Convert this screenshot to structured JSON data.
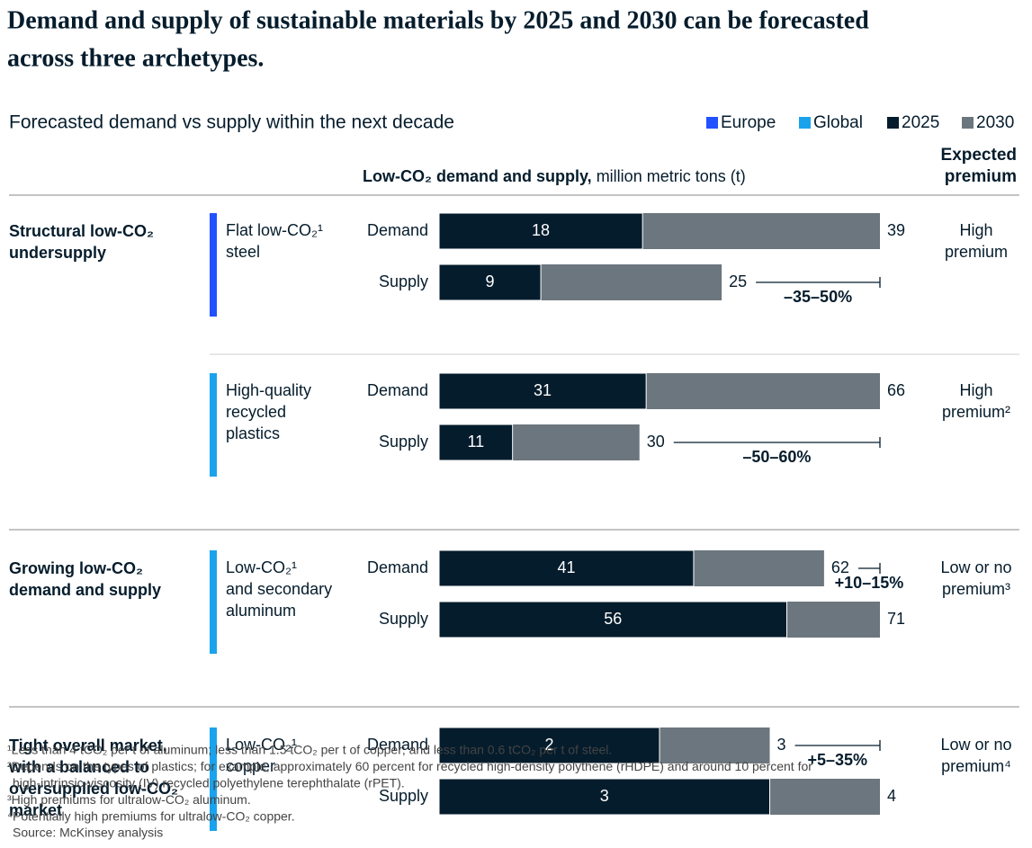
{
  "chart_data": {
    "type": "bar",
    "title": [
      "Demand and supply of sustainable materials by 2025 and 2030 can be forecasted",
      "across three archetypes."
    ],
    "subtitle": "Forecasted demand vs supply within the next decade",
    "legend": [
      {
        "name": "Europe",
        "color": "#2251ff"
      },
      {
        "name": "Global",
        "color": "#1aa3ec"
      },
      {
        "name": "2025",
        "color": "#051c2c"
      },
      {
        "name": "2030",
        "color": "#6c767e"
      }
    ],
    "value_header": {
      "bold": "Low-CO₂ demand and supply,",
      "unit": "million metric tons (t)"
    },
    "premium_header": [
      "Expected",
      "premium"
    ],
    "archetypes": [
      {
        "name": [
          "Structural low-CO₂",
          "undersupply"
        ],
        "materials": [
          {
            "name": [
              "Flat low-CO₂¹",
              "steel"
            ],
            "region": "Europe",
            "premium": [
              "High",
              "premium"
            ],
            "rows": [
              {
                "label": "Demand",
                "v2025": 18,
                "v2030": 39
              },
              {
                "label": "Supply",
                "v2025": 9,
                "v2030": 25,
                "gap": "–35–50%"
              }
            ]
          },
          {
            "name": [
              "High-quality",
              "recycled",
              "plastics"
            ],
            "region": "Global",
            "premium": [
              "High",
              "premium²"
            ],
            "rows": [
              {
                "label": "Demand",
                "v2025": 31,
                "v2030": 66
              },
              {
                "label": "Supply",
                "v2025": 11,
                "v2030": 30,
                "gap": "–50–60%"
              }
            ]
          }
        ]
      },
      {
        "name": [
          "Growing low-CO₂",
          "demand and supply"
        ],
        "materials": [
          {
            "name": [
              "Low-CO₂¹",
              "and secondary",
              "aluminum"
            ],
            "region": "Global",
            "premium": [
              "Low or no",
              "premium³"
            ],
            "rows": [
              {
                "label": "Demand",
                "v2025": 41,
                "v2030": 62,
                "gap": "+10–15%"
              },
              {
                "label": "Supply",
                "v2025": 56,
                "v2030": 71
              }
            ]
          }
        ]
      },
      {
        "name": [
          "Tight overall market,",
          "with a balanced to",
          "oversupplied low-CO₂",
          "market"
        ],
        "materials": [
          {
            "name": [
              "Low-CO₂¹",
              "copper"
            ],
            "region": "Global",
            "premium": [
              "Low or no",
              "premium⁴"
            ],
            "rows": [
              {
                "label": "Demand",
                "v2025": 2,
                "v2030": 3,
                "gap": "+5–35%"
              },
              {
                "label": "Supply",
                "v2025": 3,
                "v2030": 4
              }
            ]
          }
        ]
      }
    ],
    "footnotes": [
      [
        "¹Less than 4 tCO₂ per t of aluminum; less than 1.5 tCO₂ per t of copper; and less than 0.6 tCO₂ per t of steel."
      ],
      [
        "²Depends on the types of plastics; for example, approximately 60 percent for recycled high-density polythene (rHDPE) and around 10 percent for",
        "high-intrinsic-viscosity (IV) recycled polyethylene terephthalate (rPET)."
      ],
      [
        "³High premiums for ultralow-CO₂ aluminum."
      ],
      [
        "⁴Potentially high premiums for ultralow-CO₂ copper."
      ],
      [
        "Source: McKinsey analysis"
      ]
    ]
  }
}
